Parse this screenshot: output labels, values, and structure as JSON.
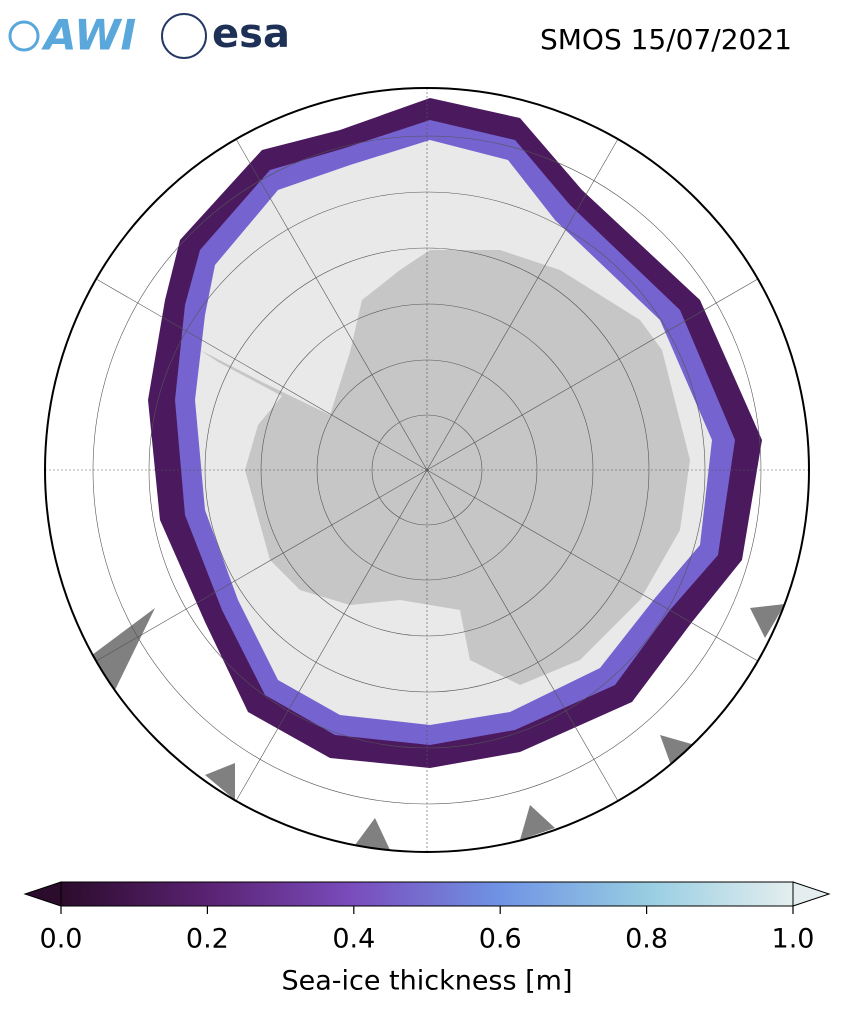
{
  "header": {
    "logos": [
      "AWI",
      "esa"
    ],
    "title": "SMOS 15/07/2021"
  },
  "colorbar": {
    "label": "Sea-ice thickness [m]",
    "lim": [
      0,
      1
    ],
    "ticks": [
      {
        "value": 0,
        "label": "0.0"
      },
      {
        "value": 0.2,
        "label": "0.2"
      },
      {
        "value": 0.4,
        "label": "0.4"
      },
      {
        "value": 0.6,
        "label": "0.6"
      },
      {
        "value": 0.8,
        "label": "0.8"
      },
      {
        "value": 1,
        "label": "1.0"
      }
    ],
    "colors": [
      "#2b0c2c",
      "#5a2272",
      "#7a4dbd",
      "#6f93e4",
      "#97cde2",
      "#e4eeee"
    ]
  }
}
